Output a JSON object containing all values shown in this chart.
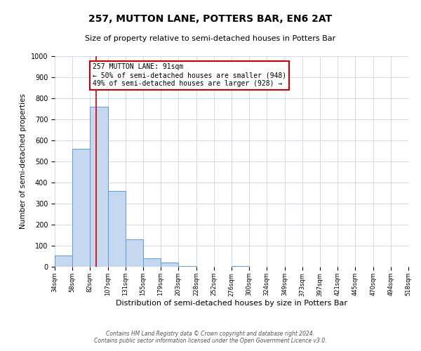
{
  "title": "257, MUTTON LANE, POTTERS BAR, EN6 2AT",
  "subtitle": "Size of property relative to semi-detached houses in Potters Bar",
  "xlabel": "Distribution of semi-detached houses by size in Potters Bar",
  "ylabel": "Number of semi-detached properties",
  "bar_color": "#c5d8f0",
  "bar_edge_color": "#5b9bd5",
  "annotation_title": "257 MUTTON LANE: 91sqm",
  "annotation_line1": "← 50% of semi-detached houses are smaller (948)",
  "annotation_line2": "49% of semi-detached houses are larger (928) →",
  "property_size": 91,
  "vline_color": "#cc0000",
  "annotation_box_color": "#cc0000",
  "bin_edges": [
    34,
    58,
    82,
    107,
    131,
    155,
    179,
    203,
    228,
    252,
    276,
    300,
    324,
    349,
    373,
    397,
    421,
    445,
    470,
    494,
    518
  ],
  "bin_counts": [
    55,
    560,
    760,
    360,
    130,
    40,
    20,
    5,
    0,
    0,
    5,
    0,
    0,
    0,
    0,
    0,
    0,
    0,
    0,
    0
  ],
  "ylim": [
    0,
    1000
  ],
  "yticks": [
    0,
    100,
    200,
    300,
    400,
    500,
    600,
    700,
    800,
    900,
    1000
  ],
  "background_color": "#ffffff",
  "grid_color": "#c8d8e8",
  "footer_line1": "Contains HM Land Registry data © Crown copyright and database right 2024.",
  "footer_line2": "Contains public sector information licensed under the Open Government Licence v3.0."
}
